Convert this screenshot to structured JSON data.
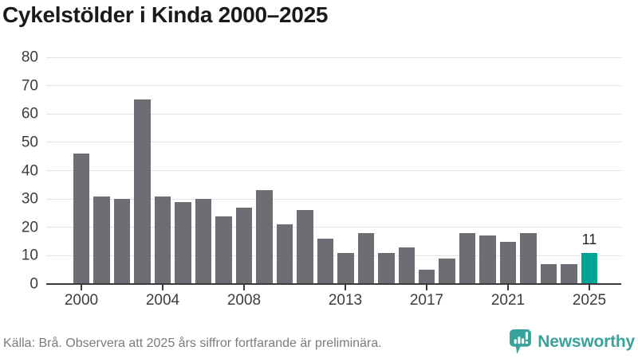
{
  "title": "Cykelstölder i Kinda 2000–2025",
  "source_note": "Källa: Brå. Observera att 2025 års siffror fortfarande är preliminära.",
  "brand": {
    "name": "Newsworthy",
    "icon": "newsworthy-speech-bubble-chart-icon",
    "color": "#38a39b"
  },
  "colors": {
    "background": "#ffffff",
    "bar": "#6d6d73",
    "highlight": "#00a496",
    "grid": "#e3e3e3",
    "axis": "#3a3a3a",
    "title_text": "#1a1a1a",
    "tick_text": "#3d3d3d",
    "footer_text": "#7b7b7b"
  },
  "chart_data": {
    "type": "bar",
    "title": "Cykelstölder i Kinda 2000–2025",
    "xlabel": "",
    "ylabel": "",
    "x": [
      2000,
      2001,
      2002,
      2003,
      2004,
      2005,
      2006,
      2007,
      2008,
      2009,
      2010,
      2011,
      2012,
      2013,
      2014,
      2015,
      2016,
      2017,
      2018,
      2019,
      2020,
      2021,
      2022,
      2023,
      2024,
      2025
    ],
    "values": [
      46,
      31,
      30,
      65,
      31,
      29,
      30,
      24,
      27,
      33,
      21,
      26,
      16,
      11,
      18,
      11,
      13,
      5,
      9,
      18,
      17,
      15,
      18,
      7,
      7,
      11
    ],
    "bar_color": "#6d6d73",
    "highlight": {
      "x": 2025,
      "value": 11,
      "label": "11",
      "color": "#00a496"
    },
    "yticks": [
      0,
      10,
      20,
      30,
      40,
      50,
      60,
      70,
      80
    ],
    "xticks": [
      2000,
      2004,
      2008,
      2013,
      2017,
      2021,
      2025
    ],
    "ylim": [
      0,
      80
    ],
    "grid": true,
    "legend": false
  }
}
